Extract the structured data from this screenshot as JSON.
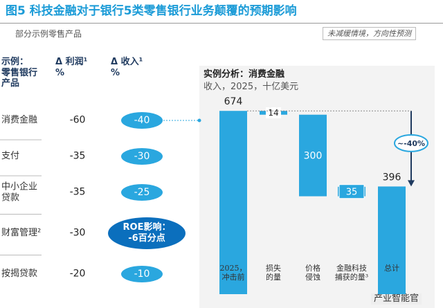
{
  "header": {
    "title": "图5  科技金融对于银行5类零售银行业务颠覆的预期影响",
    "subtitle": "部分示例零售产品",
    "note": "未减缓情境，方向性预测"
  },
  "table": {
    "columns": [
      "示例：\n零售银行\n产品",
      "Δ 利润¹\n%",
      "Δ 收入¹\n%"
    ],
    "rows": [
      [
        "消费金融",
        "-60",
        "-40"
      ],
      [
        "支付",
        "-35",
        "-30"
      ],
      [
        "中小企业\n贷款",
        "-35",
        "-25"
      ],
      [
        "财富管理²",
        "-30",
        "ROE影响：\n-6百分点"
      ],
      [
        "按揭贷款",
        "-20",
        "-10"
      ]
    ]
  },
  "chart_data": {
    "type": "waterfall",
    "title": "实例分析：消费金融",
    "subtitle": "收入，2025，十亿美元",
    "categories": [
      "2025，\n冲击前",
      "损失\n的量",
      "价格\n侵蚀",
      "金融科技\n捕获的量³",
      "总计"
    ],
    "values": [
      674,
      14,
      300,
      35,
      396
    ],
    "kinds": [
      "total",
      "decrease",
      "decrease",
      "increase",
      "total"
    ],
    "color": "#2aa7df",
    "ylim": [
      0,
      700
    ],
    "annotation": "~-40%"
  },
  "watermark": "产业智能官"
}
